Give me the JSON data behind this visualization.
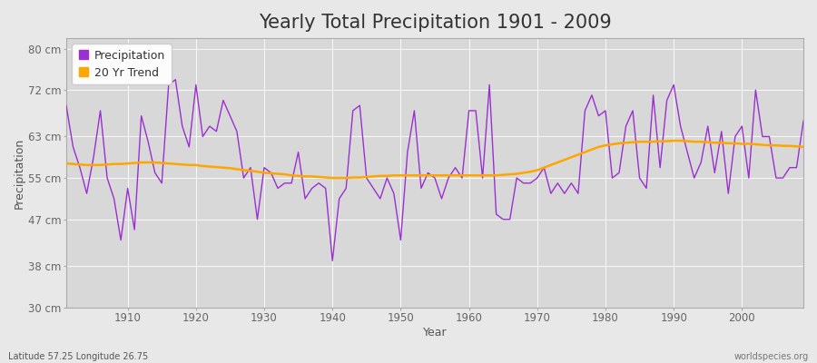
{
  "title": "Yearly Total Precipitation 1901 - 2009",
  "xlabel": "Year",
  "ylabel": "Precipitation",
  "footnote_left": "Latitude 57.25 Longitude 26.75",
  "footnote_right": "worldspecies.org",
  "years": [
    1901,
    1902,
    1903,
    1904,
    1905,
    1906,
    1907,
    1908,
    1909,
    1910,
    1911,
    1912,
    1913,
    1914,
    1915,
    1916,
    1917,
    1918,
    1919,
    1920,
    1921,
    1922,
    1923,
    1924,
    1925,
    1926,
    1927,
    1928,
    1929,
    1930,
    1931,
    1932,
    1933,
    1934,
    1935,
    1936,
    1937,
    1938,
    1939,
    1940,
    1941,
    1942,
    1943,
    1944,
    1945,
    1946,
    1947,
    1948,
    1949,
    1950,
    1951,
    1952,
    1953,
    1954,
    1955,
    1956,
    1957,
    1958,
    1959,
    1960,
    1961,
    1962,
    1963,
    1964,
    1965,
    1966,
    1967,
    1968,
    1969,
    1970,
    1971,
    1972,
    1973,
    1974,
    1975,
    1976,
    1977,
    1978,
    1979,
    1980,
    1981,
    1982,
    1983,
    1984,
    1985,
    1986,
    1987,
    1988,
    1989,
    1990,
    1991,
    1992,
    1993,
    1994,
    1995,
    1996,
    1997,
    1998,
    1999,
    2000,
    2001,
    2002,
    2003,
    2004,
    2005,
    2006,
    2007,
    2008,
    2009
  ],
  "precip": [
    69,
    61,
    57,
    52,
    59,
    68,
    55,
    51,
    43,
    53,
    45,
    67,
    62,
    56,
    54,
    73,
    74,
    65,
    61,
    73,
    63,
    65,
    64,
    70,
    67,
    64,
    55,
    57,
    47,
    57,
    56,
    53,
    54,
    54,
    60,
    51,
    53,
    54,
    53,
    39,
    51,
    53,
    68,
    69,
    55,
    53,
    51,
    55,
    52,
    43,
    60,
    68,
    53,
    56,
    55,
    51,
    55,
    57,
    55,
    68,
    68,
    55,
    73,
    48,
    47,
    47,
    55,
    54,
    54,
    55,
    57,
    52,
    54,
    52,
    54,
    52,
    68,
    71,
    67,
    68,
    55,
    56,
    65,
    68,
    55,
    53,
    71,
    57,
    70,
    73,
    65,
    60,
    55,
    58,
    65,
    56,
    64,
    52,
    63,
    65,
    55,
    72,
    63,
    63,
    55,
    55,
    57,
    57,
    66
  ],
  "trend": [
    57.8,
    57.7,
    57.6,
    57.5,
    57.5,
    57.5,
    57.6,
    57.7,
    57.7,
    57.8,
    57.9,
    58.0,
    58.0,
    58.0,
    57.9,
    57.8,
    57.7,
    57.6,
    57.5,
    57.5,
    57.3,
    57.2,
    57.1,
    57.0,
    56.9,
    56.7,
    56.5,
    56.4,
    56.2,
    56.0,
    55.9,
    55.8,
    55.7,
    55.5,
    55.4,
    55.3,
    55.3,
    55.2,
    55.1,
    55.0,
    55.0,
    55.0,
    55.1,
    55.1,
    55.2,
    55.3,
    55.4,
    55.4,
    55.5,
    55.5,
    55.5,
    55.5,
    55.5,
    55.5,
    55.5,
    55.5,
    55.5,
    55.5,
    55.5,
    55.5,
    55.5,
    55.5,
    55.5,
    55.5,
    55.6,
    55.7,
    55.8,
    56.0,
    56.2,
    56.5,
    57.0,
    57.5,
    58.0,
    58.5,
    59.0,
    59.5,
    60.0,
    60.5,
    61.0,
    61.3,
    61.5,
    61.7,
    61.8,
    61.9,
    62.0,
    62.0,
    62.0,
    62.1,
    62.1,
    62.2,
    62.2,
    62.1,
    62.0,
    62.0,
    61.9,
    61.8,
    61.8,
    61.7,
    61.7,
    61.6,
    61.6,
    61.5,
    61.4,
    61.3,
    61.3,
    61.2,
    61.2,
    61.1,
    61.0
  ],
  "precip_color": "#9B30D0",
  "trend_color": "#FFA500",
  "bg_color": "#E8E8E8",
  "plot_bg_color": "#D8D8D8",
  "grid_color": "#FFFFFF",
  "ylim": [
    30,
    82
  ],
  "yticks": [
    30,
    38,
    47,
    55,
    63,
    72,
    80
  ],
  "ytick_labels": [
    "30 cm",
    "38 cm",
    "47 cm",
    "55 cm",
    "63 cm",
    "72 cm",
    "80 cm"
  ],
  "xticks": [
    1910,
    1920,
    1930,
    1940,
    1950,
    1960,
    1970,
    1980,
    1990,
    2000
  ],
  "xlim": [
    1901,
    2009
  ],
  "title_fontsize": 15,
  "label_fontsize": 9,
  "tick_fontsize": 8.5,
  "legend_fontsize": 9
}
